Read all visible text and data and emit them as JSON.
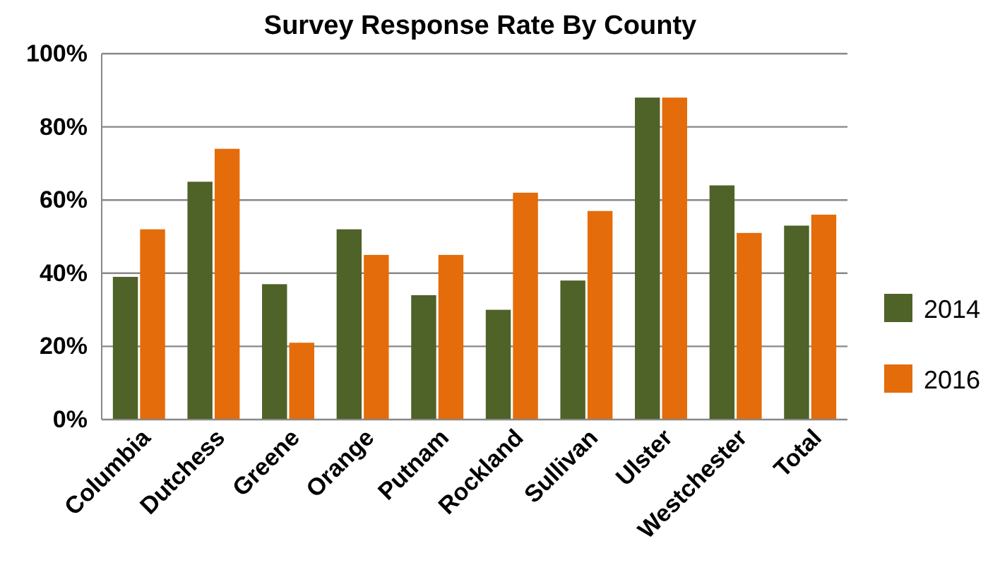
{
  "chart_data": {
    "type": "bar",
    "title": "Survey Response Rate By County",
    "categories": [
      "Columbia",
      "Dutchess",
      "Greene",
      "Orange",
      "Putnam",
      "Rockland",
      "Sullivan",
      "Ulster",
      "Westchester",
      "Total"
    ],
    "series": [
      {
        "name": "2014",
        "color": "#4f6228",
        "values": [
          39,
          65,
          37,
          52,
          34,
          30,
          38,
          88,
          64,
          53
        ]
      },
      {
        "name": "2016",
        "color": "#e46c0a",
        "values": [
          52,
          74,
          21,
          45,
          45,
          62,
          57,
          88,
          51,
          56
        ]
      }
    ],
    "ylim": [
      0,
      100
    ],
    "yticks": [
      {
        "value": 0,
        "label": "0%"
      },
      {
        "value": 20,
        "label": "20%"
      },
      {
        "value": 40,
        "label": "40%"
      },
      {
        "value": 60,
        "label": "60%"
      },
      {
        "value": 80,
        "label": "80%"
      },
      {
        "value": 100,
        "label": "100%"
      }
    ],
    "grid": "y",
    "legend": "right"
  }
}
